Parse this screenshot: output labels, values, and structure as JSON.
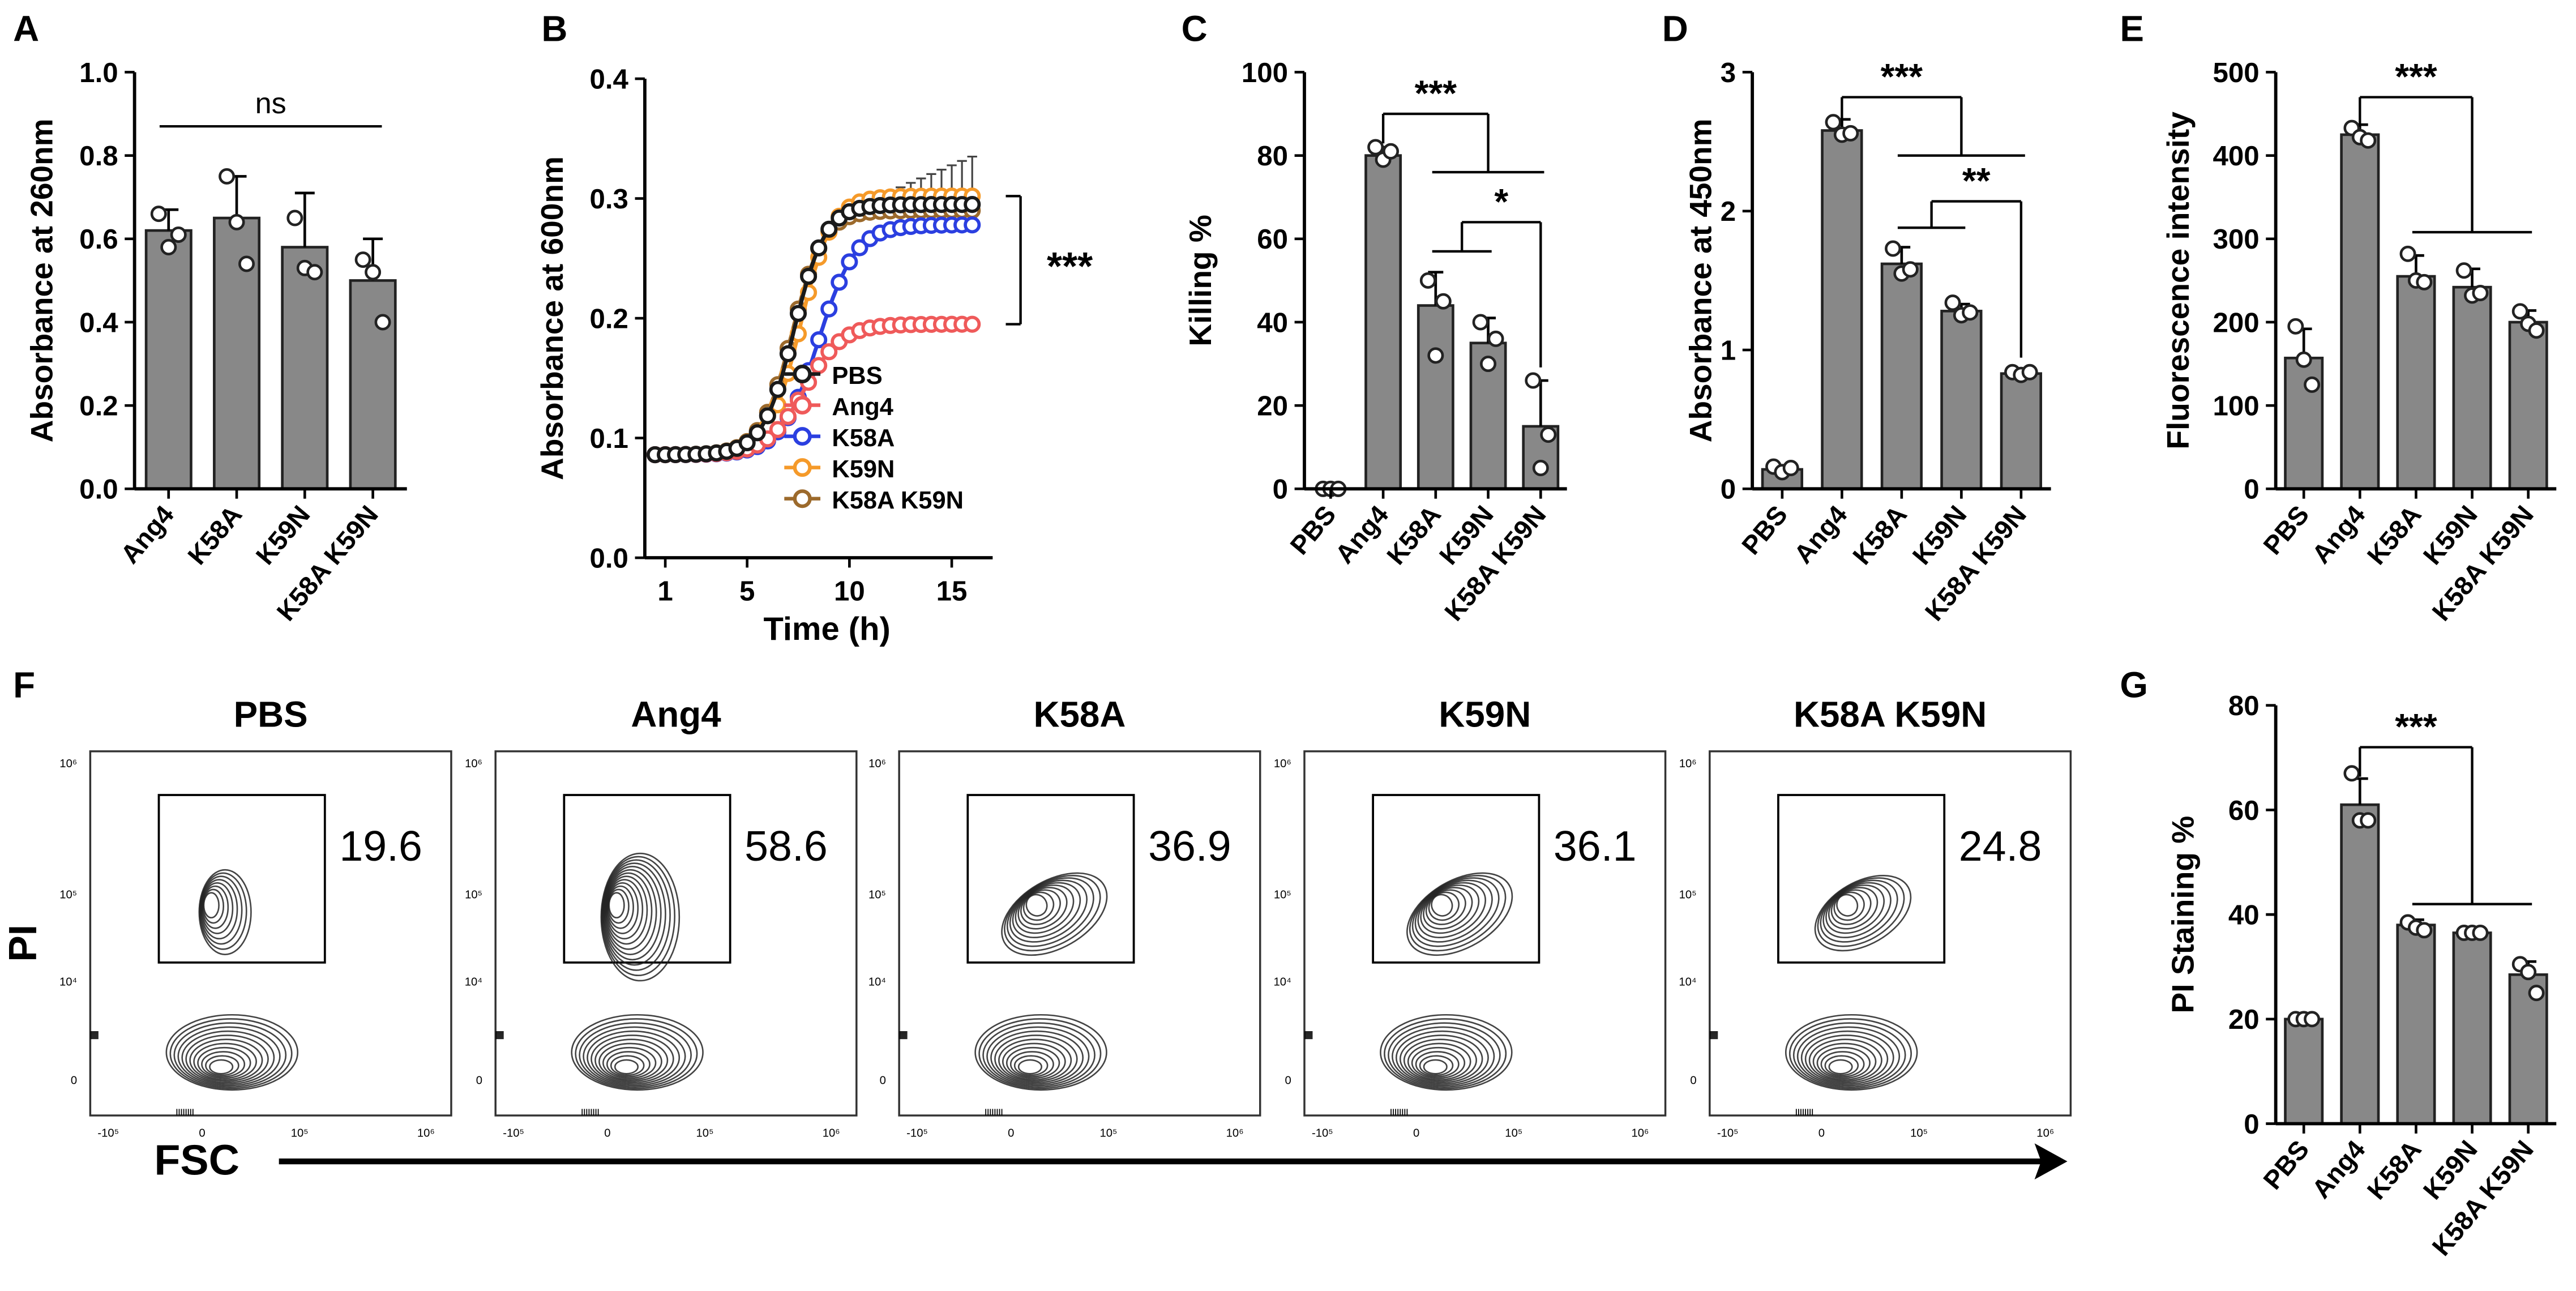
{
  "panel_letters": [
    "A",
    "B",
    "C",
    "D",
    "E",
    "F",
    "G"
  ],
  "colors": {
    "bar_fill": "#888888",
    "bar_stroke": "#222222",
    "dot": "#ffffff",
    "contour": "#222222",
    "PBS": "#1a1a1a",
    "Ang4": "#ef5a5a",
    "K58A": "#2b3fe0",
    "K59N": "#f59a2a",
    "K58A K59N": "#9c6a2c"
  },
  "chart_data": [
    {
      "id": "A",
      "type": "bar",
      "title": "",
      "xlabel": "",
      "ylabel": "Absorbance at 260nm",
      "categories": [
        "Ang4",
        "K58A",
        "K59N",
        "K58A K59N"
      ],
      "ylim": [
        0,
        1.0
      ],
      "yticks": [
        0,
        0.2,
        0.4,
        0.6,
        0.8,
        1.0
      ],
      "ytick_labels": [
        "0.0",
        "0.2",
        "0.4",
        "0.6",
        "0.8",
        "1.0"
      ],
      "values": [
        0.62,
        0.65,
        0.58,
        0.5
      ],
      "errors": [
        0.05,
        0.1,
        0.13,
        0.1
      ],
      "points": [
        [
          0.66,
          0.58,
          0.61
        ],
        [
          0.75,
          0.64,
          0.54
        ],
        [
          0.65,
          0.53,
          0.52
        ],
        [
          0.55,
          0.52,
          0.4
        ]
      ],
      "annotations": [
        {
          "text": "ns",
          "from": 0,
          "to": 3,
          "y": 0.87
        }
      ]
    },
    {
      "id": "B",
      "type": "line",
      "title": "",
      "xlabel": "Time (h)",
      "ylabel": "Absorbance at 600nm",
      "xlim": [
        0,
        17
      ],
      "xticks": [
        1,
        5,
        10,
        15
      ],
      "xtick_labels": [
        "1",
        "5",
        "10",
        "15"
      ],
      "ylim": [
        0,
        0.4
      ],
      "yticks": [
        0,
        0.1,
        0.2,
        0.3,
        0.4
      ],
      "ytick_labels": [
        "0.0",
        "0.1",
        "0.2",
        "0.3",
        "0.4"
      ],
      "series": [
        {
          "name": "PBS",
          "plateau": 0.295,
          "mid": 7.3,
          "rate": 1.3,
          "error": 0.04
        },
        {
          "name": "Ang4",
          "plateau": 0.195,
          "mid": 7.8,
          "rate": 1.1,
          "error": 0
        },
        {
          "name": "K58A",
          "plateau": 0.278,
          "mid": 8.5,
          "rate": 1.1,
          "error": 0
        },
        {
          "name": "K59N",
          "plateau": 0.302,
          "mid": 7.6,
          "rate": 1.3,
          "error": 0
        },
        {
          "name": "K58A K59N",
          "plateau": 0.29,
          "mid": 7.2,
          "rate": 1.3,
          "error": 0
        }
      ],
      "legend_placement": "center-right",
      "annotations": [
        {
          "text": "***",
          "from_y": 0.302,
          "to_y": 0.195
        }
      ]
    },
    {
      "id": "C",
      "type": "bar",
      "title": "",
      "xlabel": "",
      "ylabel": "Killing %",
      "categories": [
        "PBS",
        "Ang4",
        "K58A",
        "K59N",
        "K58A K59N"
      ],
      "ylim": [
        0,
        100
      ],
      "yticks": [
        0,
        20,
        40,
        60,
        80,
        100
      ],
      "ytick_labels": [
        "0",
        "20",
        "40",
        "60",
        "80",
        "100"
      ],
      "values": [
        0,
        80,
        44,
        35,
        15
      ],
      "errors": [
        0,
        2,
        8,
        6,
        11
      ],
      "points": [
        [
          0,
          0,
          0
        ],
        [
          82,
          79,
          81
        ],
        [
          50,
          32,
          45
        ],
        [
          40,
          30,
          36
        ],
        [
          26,
          5,
          13
        ]
      ],
      "annotations": [
        {
          "text": "***",
          "from": 1,
          "to_group": [
            2,
            4
          ],
          "y": 90,
          "group_y": 76
        },
        {
          "text": "*",
          "from_group": [
            2,
            3
          ],
          "to": 4,
          "y": 64,
          "group_y": 57
        }
      ]
    },
    {
      "id": "D",
      "type": "bar",
      "title": "",
      "xlabel": "",
      "ylabel": "Absorbance at 450nm",
      "categories": [
        "PBS",
        "Ang4",
        "K58A",
        "K59N",
        "K58A K59N"
      ],
      "ylim": [
        0,
        3
      ],
      "yticks": [
        0,
        1,
        2,
        3
      ],
      "ytick_labels": [
        "0",
        "1",
        "2",
        "3"
      ],
      "values": [
        0.14,
        2.58,
        1.62,
        1.28,
        0.83
      ],
      "errors": [
        0.03,
        0.08,
        0.12,
        0.05,
        0.02
      ],
      "points": [
        [
          0.16,
          0.12,
          0.15
        ],
        [
          2.64,
          2.55,
          2.56
        ],
        [
          1.73,
          1.55,
          1.58
        ],
        [
          1.34,
          1.25,
          1.27
        ],
        [
          0.84,
          0.82,
          0.84
        ]
      ],
      "annotations": [
        {
          "text": "***",
          "from": 1,
          "to_group": [
            2,
            4
          ],
          "y": 2.82,
          "group_y": 2.4
        },
        {
          "text": "**",
          "from_group": [
            2,
            3
          ],
          "to": 4,
          "y": 2.07,
          "group_y": 1.88
        }
      ]
    },
    {
      "id": "E",
      "type": "bar",
      "title": "",
      "xlabel": "",
      "ylabel": "Fluorescence intensity",
      "categories": [
        "PBS",
        "Ang4",
        "K58A",
        "K59N",
        "K58A K59N"
      ],
      "ylim": [
        0,
        500
      ],
      "yticks": [
        0,
        100,
        200,
        300,
        400,
        500
      ],
      "ytick_labels": [
        "0",
        "100",
        "200",
        "300",
        "400",
        "500"
      ],
      "values": [
        157,
        425,
        255,
        242,
        200
      ],
      "errors": [
        35,
        12,
        25,
        22,
        14
      ],
      "points": [
        [
          195,
          155,
          125
        ],
        [
          433,
          422,
          418
        ],
        [
          282,
          250,
          248
        ],
        [
          262,
          232,
          235
        ],
        [
          213,
          198,
          190
        ]
      ],
      "annotations": [
        {
          "text": "***",
          "from": 1,
          "to_group": [
            2,
            4
          ],
          "y": 470,
          "group_y": 308
        }
      ]
    },
    {
      "id": "G",
      "type": "bar",
      "title": "",
      "xlabel": "",
      "ylabel": "PI Staining %",
      "categories": [
        "PBS",
        "Ang4",
        "K58A",
        "K59N",
        "K58A K59N"
      ],
      "ylim": [
        0,
        80
      ],
      "yticks": [
        0,
        20,
        40,
        60,
        80
      ],
      "ytick_labels": [
        "0",
        "20",
        "40",
        "60",
        "80"
      ],
      "values": [
        20,
        61,
        38,
        36.5,
        28.5
      ],
      "errors": [
        0,
        5,
        1,
        0.5,
        2.5
      ],
      "points": [
        [
          20,
          20,
          20
        ],
        [
          67,
          58,
          58
        ],
        [
          38.5,
          37.5,
          37
        ],
        [
          36.5,
          36.5,
          36.5
        ],
        [
          30.5,
          29,
          25
        ]
      ],
      "annotations": [
        {
          "text": "***",
          "from": 1,
          "to_group": [
            2,
            4
          ],
          "y": 72,
          "group_y": 42
        }
      ]
    }
  ],
  "flow": {
    "panel": "F",
    "ylabel": "PI",
    "xlabel": "FSC",
    "y_tick_labels": [
      "10⁶",
      "10⁵",
      "10⁴",
      "0"
    ],
    "x_tick_labels": [
      "-10⁵",
      "0",
      "10⁵",
      "10⁶"
    ],
    "plots": [
      {
        "title": "PBS",
        "percent": "19.6",
        "ratio": 0.55
      },
      {
        "title": "Ang4",
        "percent": "58.6",
        "ratio": 1.6
      },
      {
        "title": "K58A",
        "percent": "36.9",
        "ratio": 1.0
      },
      {
        "title": "K59N",
        "percent": "36.1",
        "ratio": 1.0
      },
      {
        "title": "K58A K59N",
        "percent": "24.8",
        "ratio": 0.7
      }
    ]
  }
}
